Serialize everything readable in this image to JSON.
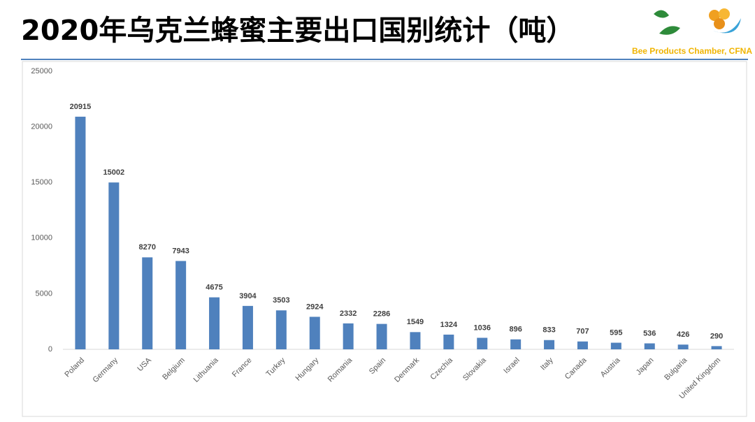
{
  "chart_data": {
    "type": "bar",
    "title": "2020年乌克兰蜂蜜主要出口国别统计（吨）",
    "source": "Bee Products Chamber, CFNA",
    "categories": [
      "Poland",
      "Germany",
      "USA",
      "Belgium",
      "Lithuania",
      "France",
      "Turkey",
      "Hungary",
      "Romania",
      "Spain",
      "Denmark",
      "Czechia",
      "Slovakia",
      "Israel",
      "Italy",
      "Canada",
      "Austria",
      "Japan",
      "Bulgaria",
      "United Kingdom"
    ],
    "values": [
      20915,
      15002,
      8270,
      7943,
      4675,
      3904,
      3503,
      2924,
      2332,
      2286,
      1549,
      1324,
      1036,
      896,
      833,
      707,
      595,
      536,
      426,
      290
    ],
    "color": "#4f81bd",
    "ylim": [
      0,
      25000
    ],
    "yticks": [
      0,
      5000,
      10000,
      15000,
      20000,
      25000
    ],
    "grid": false
  }
}
